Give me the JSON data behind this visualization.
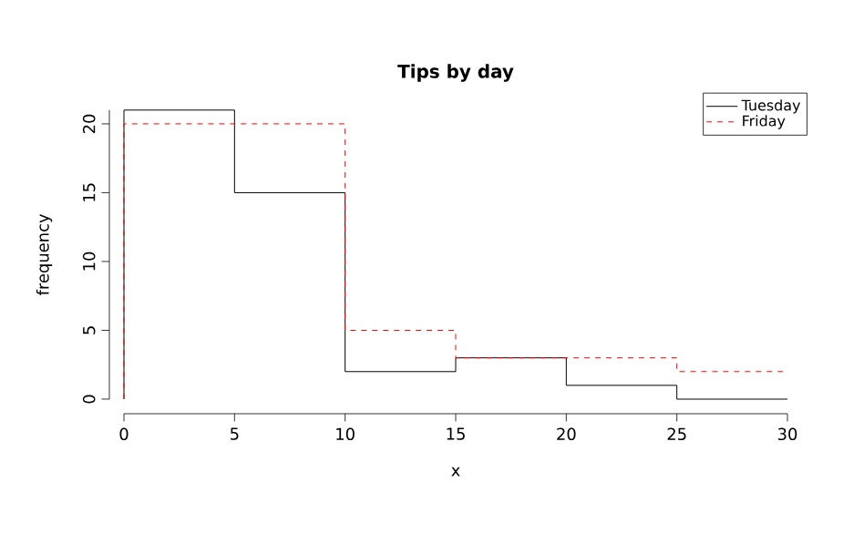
{
  "chart_data": {
    "type": "histogram",
    "title": "Tips by day",
    "xlabel": "x",
    "ylabel": "frequency",
    "bins": [
      0,
      5,
      10,
      15,
      20,
      25,
      30
    ],
    "series": [
      {
        "name": "Tuesday",
        "color": "#000000",
        "line_style": "solid",
        "values": [
          21,
          15,
          2,
          3,
          1,
          0
        ]
      },
      {
        "name": "Friday",
        "color": "#ff0000",
        "line_style": "dashed",
        "values": [
          20,
          20,
          5,
          3,
          3,
          2
        ]
      }
    ],
    "xlim": [
      0,
      30
    ],
    "ylim": [
      0,
      21
    ],
    "xticks": [
      0,
      5,
      10,
      15,
      20,
      25,
      30
    ],
    "yticks": [
      0,
      5,
      10,
      15,
      20
    ],
    "legend": "top right",
    "marker": "none"
  }
}
